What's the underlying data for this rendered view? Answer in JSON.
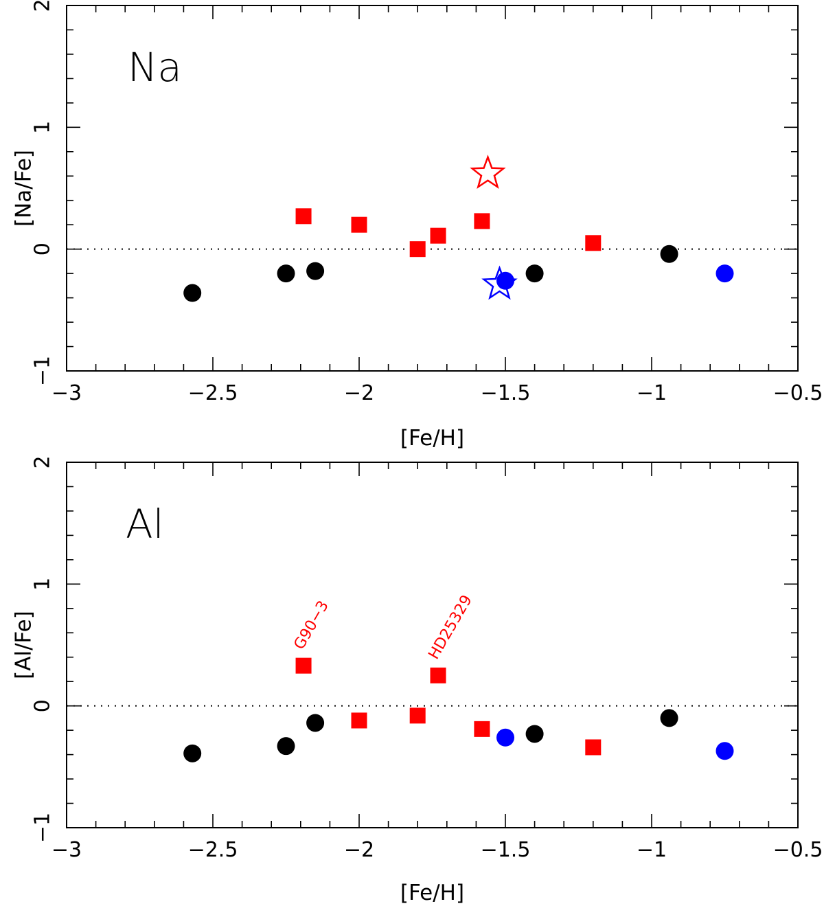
{
  "chart_data": [
    {
      "type": "scatter",
      "panel_label": "Na",
      "xlabel": "[Fe/H]",
      "ylabel": "[Na/Fe]",
      "xlim": [
        -3,
        -0.5
      ],
      "ylim": [
        -1,
        2
      ],
      "x_major_ticks": [
        -3,
        -2.5,
        -2,
        -1.5,
        -1,
        -0.5
      ],
      "x_tick_labels": [
        "−3",
        "−2.5",
        "−2",
        "−1.5",
        "−1",
        "−0.5"
      ],
      "y_major_ticks": [
        -1,
        0,
        1,
        2
      ],
      "y_tick_labels": [
        "−1",
        "0",
        "1",
        "2"
      ],
      "reference_line": {
        "y": 0,
        "style": "dotted"
      },
      "grid": false,
      "series": [
        {
          "marker": "circle",
          "color": "#000000",
          "points": [
            [
              -2.57,
              -0.36
            ],
            [
              -2.25,
              -0.2
            ],
            [
              -2.15,
              -0.18
            ],
            [
              -1.4,
              -0.2
            ],
            [
              -0.94,
              -0.04
            ]
          ]
        },
        {
          "marker": "square",
          "color": "#ff0000",
          "points": [
            [
              -2.19,
              0.27
            ],
            [
              -2.0,
              0.2
            ],
            [
              -1.8,
              0.0
            ],
            [
              -1.73,
              0.11
            ],
            [
              -1.58,
              0.23
            ],
            [
              -1.2,
              0.05
            ]
          ]
        },
        {
          "marker": "circle",
          "color": "#0000ff",
          "points": [
            [
              -1.5,
              -0.26
            ],
            [
              -0.75,
              -0.2
            ]
          ]
        },
        {
          "marker": "open-star",
          "color": "#ff0000",
          "points": [
            [
              -1.56,
              0.62
            ]
          ]
        },
        {
          "marker": "open-star",
          "color": "#0000ff",
          "points": [
            [
              -1.52,
              -0.29
            ]
          ]
        }
      ],
      "annotations": []
    },
    {
      "type": "scatter",
      "panel_label": "Al",
      "xlabel": "[Fe/H]",
      "ylabel": "[Al/Fe]",
      "xlim": [
        -3,
        -0.5
      ],
      "ylim": [
        -1,
        2
      ],
      "x_major_ticks": [
        -3,
        -2.5,
        -2,
        -1.5,
        -1,
        -0.5
      ],
      "x_tick_labels": [
        "−3",
        "−2.5",
        "−2",
        "−1.5",
        "−1",
        "−0.5"
      ],
      "y_major_ticks": [
        -1,
        0,
        1,
        2
      ],
      "y_tick_labels": [
        "−1",
        "0",
        "1",
        "2"
      ],
      "reference_line": {
        "y": 0,
        "style": "dotted"
      },
      "grid": false,
      "series": [
        {
          "marker": "circle",
          "color": "#000000",
          "points": [
            [
              -2.57,
              -0.39
            ],
            [
              -2.25,
              -0.33
            ],
            [
              -2.15,
              -0.14
            ],
            [
              -1.4,
              -0.23
            ],
            [
              -0.94,
              -0.1
            ]
          ]
        },
        {
          "marker": "square",
          "color": "#ff0000",
          "points": [
            [
              -2.19,
              0.33
            ],
            [
              -2.0,
              -0.12
            ],
            [
              -1.8,
              -0.08
            ],
            [
              -1.73,
              0.25
            ],
            [
              -1.58,
              -0.19
            ],
            [
              -1.2,
              -0.34
            ]
          ]
        },
        {
          "marker": "circle",
          "color": "#0000ff",
          "points": [
            [
              -1.5,
              -0.26
            ],
            [
              -0.75,
              -0.37
            ]
          ]
        }
      ],
      "annotations": [
        {
          "text": "G90−3",
          "x": -2.19,
          "y": 0.33,
          "color": "#ff0000"
        },
        {
          "text": "HD25329",
          "x": -1.73,
          "y": 0.25,
          "color": "#ff0000"
        }
      ]
    }
  ]
}
